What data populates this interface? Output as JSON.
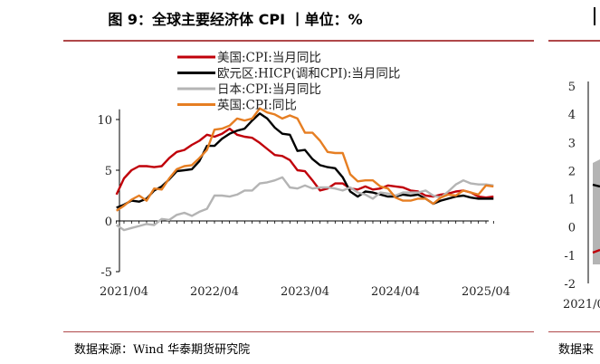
{
  "title": "图 9：全球主要经济体 CPI 丨单位：%",
  "source": "数据来源：Wind 华泰期货研究院",
  "right_panel": {
    "source_fragment": "数据来",
    "y_ticks": [
      "5",
      "4",
      "3",
      "2",
      "1",
      "0",
      "-1",
      "-2"
    ],
    "x_tick_fragment": "2021/0"
  },
  "chart_data": {
    "type": "line",
    "title": "图 9：全球主要经济体 CPI 丨单位：%",
    "xlabel": "",
    "ylabel": "",
    "ylim": [
      -5,
      11
    ],
    "yticks": [
      -5,
      0,
      5,
      10
    ],
    "xticks": [
      "2021/04",
      "2022/04",
      "2023/04",
      "2024/04",
      "2025/04"
    ],
    "x": [
      "2021/03",
      "2021/04",
      "2021/05",
      "2021/06",
      "2021/07",
      "2021/08",
      "2021/09",
      "2021/10",
      "2021/11",
      "2021/12",
      "2022/01",
      "2022/02",
      "2022/03",
      "2022/04",
      "2022/05",
      "2022/06",
      "2022/07",
      "2022/08",
      "2022/09",
      "2022/10",
      "2022/11",
      "2022/12",
      "2023/01",
      "2023/02",
      "2023/03",
      "2023/04",
      "2023/05",
      "2023/06",
      "2023/07",
      "2023/08",
      "2023/09",
      "2023/10",
      "2023/11",
      "2023/12",
      "2024/01",
      "2024/02",
      "2024/03",
      "2024/04",
      "2024/05",
      "2024/06",
      "2024/07",
      "2024/08",
      "2024/09",
      "2024/10",
      "2024/11",
      "2024/12",
      "2025/01",
      "2025/02",
      "2025/03",
      "2025/04",
      "2025/05"
    ],
    "legend_position": "top",
    "grid": false,
    "series": [
      {
        "name": "美国:CPI:当月同比",
        "color": "#c0000a",
        "values": [
          2.6,
          4.2,
          5.0,
          5.4,
          5.4,
          5.3,
          5.4,
          6.2,
          6.8,
          7.0,
          7.5,
          7.9,
          8.5,
          8.3,
          8.6,
          9.1,
          8.5,
          8.3,
          8.2,
          7.7,
          7.1,
          6.5,
          6.4,
          6.0,
          5.0,
          4.9,
          4.0,
          3.0,
          3.2,
          3.7,
          3.7,
          3.2,
          3.1,
          3.4,
          3.1,
          3.2,
          3.5,
          3.4,
          3.3,
          3.0,
          2.9,
          2.5,
          2.4,
          2.6,
          2.7,
          2.9,
          3.0,
          2.8,
          2.4,
          2.3,
          2.4
        ]
      },
      {
        "name": "欧元区:HICP(调和CPI):当月同比",
        "color": "#000000",
        "values": [
          1.3,
          1.6,
          2.0,
          1.9,
          2.2,
          3.0,
          3.4,
          4.1,
          4.9,
          5.0,
          5.1,
          5.9,
          7.4,
          7.4,
          8.1,
          8.6,
          8.9,
          9.1,
          9.9,
          10.6,
          10.1,
          9.2,
          8.6,
          8.5,
          6.9,
          7.0,
          6.1,
          5.5,
          5.3,
          5.2,
          4.3,
          2.9,
          2.4,
          2.9,
          2.8,
          2.6,
          2.4,
          2.4,
          2.6,
          2.5,
          2.6,
          2.2,
          1.7,
          2.0,
          2.2,
          2.4,
          2.5,
          2.3,
          2.2,
          2.2,
          2.2
        ]
      },
      {
        "name": "日本:CPI:当月同比",
        "color": "#b4b4b4",
        "values": [
          -0.4,
          -0.9,
          -0.7,
          -0.5,
          -0.3,
          -0.4,
          0.2,
          0.1,
          0.6,
          0.8,
          0.5,
          0.9,
          1.2,
          2.5,
          2.5,
          2.4,
          2.6,
          3.0,
          3.0,
          3.7,
          3.8,
          4.0,
          4.3,
          3.3,
          3.2,
          3.5,
          3.2,
          3.3,
          3.3,
          3.2,
          3.0,
          3.3,
          2.8,
          2.6,
          2.2,
          2.8,
          2.7,
          2.5,
          2.8,
          2.8,
          2.8,
          3.0,
          2.5,
          2.3,
          2.9,
          3.6,
          4.0,
          3.7,
          3.6,
          3.6,
          3.5
        ]
      },
      {
        "name": "英国:CPI:同比",
        "color": "#e67e22",
        "values": [
          1.0,
          1.5,
          2.1,
          2.5,
          2.0,
          3.2,
          3.1,
          4.2,
          5.1,
          5.4,
          5.5,
          6.2,
          7.0,
          9.0,
          9.1,
          9.4,
          10.1,
          9.9,
          10.1,
          11.1,
          10.7,
          10.5,
          10.1,
          10.4,
          10.1,
          8.7,
          8.7,
          7.9,
          6.8,
          6.7,
          6.7,
          4.6,
          3.9,
          4.0,
          4.0,
          3.4,
          3.2,
          2.3,
          2.0,
          2.0,
          2.2,
          2.2,
          1.7,
          2.3,
          2.6,
          2.5,
          3.0,
          2.8,
          2.6,
          3.5,
          3.4
        ]
      }
    ]
  }
}
